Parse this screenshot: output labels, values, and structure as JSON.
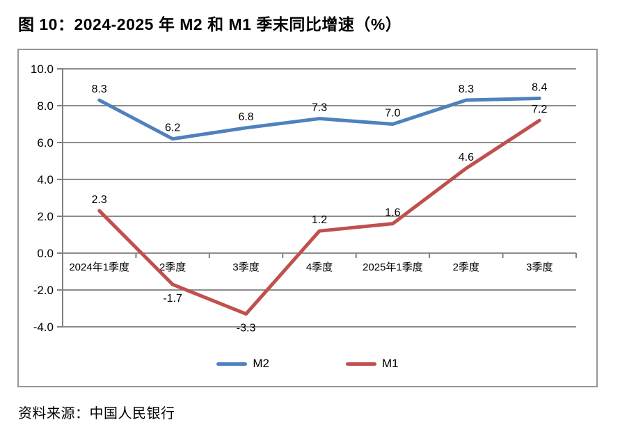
{
  "title": "图 10：2024-2025 年 M2 和 M1 季末同比增速（%）",
  "source": "资料来源：中国人民银行",
  "colors": {
    "m2_line": "#4F81BD",
    "m1_line": "#C0504D",
    "gridline": "#8C8C8C",
    "axis": "#808080",
    "frame_border": "#969696",
    "text": "#000000"
  },
  "chart_data": {
    "type": "line",
    "title": "图 10：2024-2025 年 M2 和 M1 季末同比增速（%）",
    "categories": [
      "2024年1季度",
      "2季度",
      "3季度",
      "4季度",
      "2025年1季度",
      "2季度",
      "3季度"
    ],
    "series": [
      {
        "name": "M2",
        "color": "#4F81BD",
        "values": [
          8.3,
          6.2,
          6.8,
          7.3,
          7.0,
          8.3,
          8.4
        ]
      },
      {
        "name": "M1",
        "color": "#C0504D",
        "values": [
          2.3,
          -1.7,
          -3.3,
          1.2,
          1.6,
          4.6,
          7.2
        ]
      }
    ],
    "ylim": [
      -4.0,
      10.0
    ],
    "ytick_step": 2.0,
    "ytick_labels": [
      "10.0",
      "8.0",
      "6.0",
      "4.0",
      "2.0",
      "0.0",
      "-2.0",
      "-4.0"
    ],
    "xlabel": "",
    "ylabel": "",
    "grid": true,
    "data_labels": true,
    "legend_position": "bottom"
  }
}
